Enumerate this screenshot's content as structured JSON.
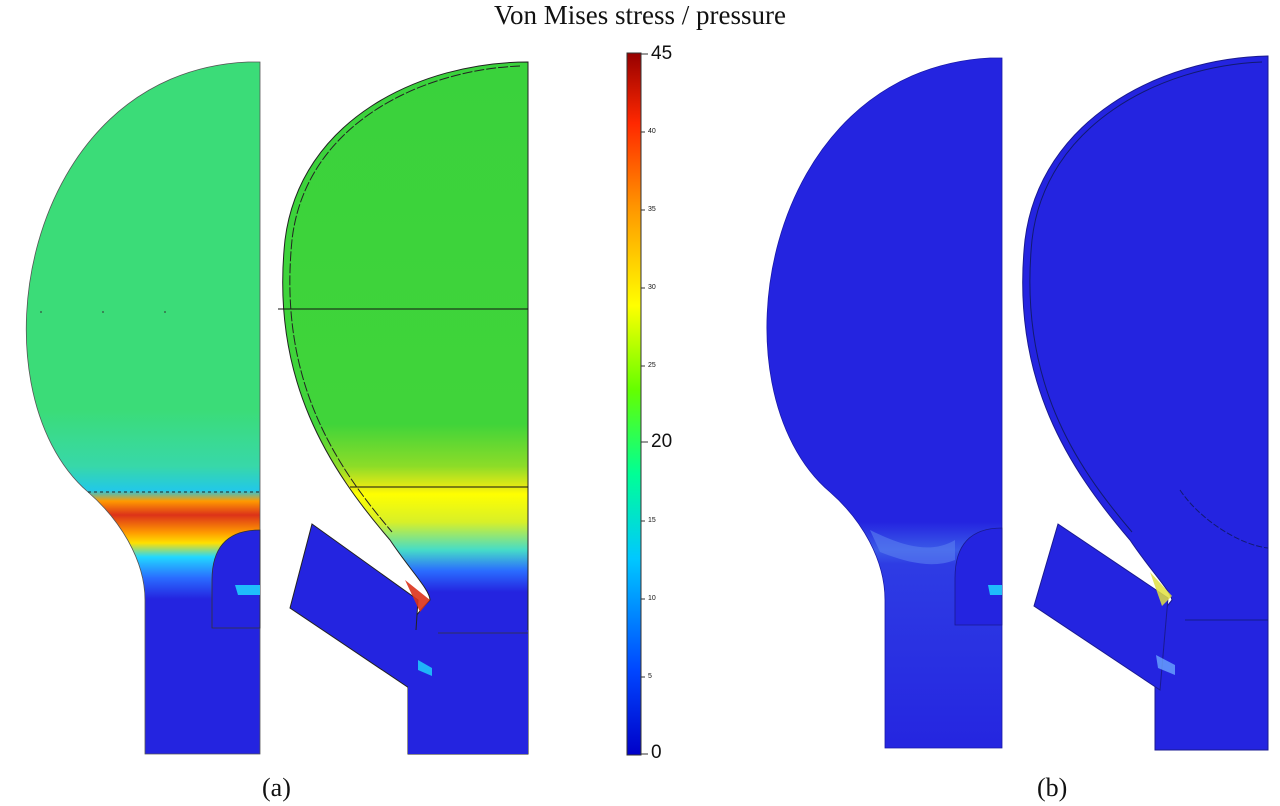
{
  "title": "Von Mises stress / pressure",
  "panel_labels": [
    "(a)",
    "(b)"
  ],
  "colorbar": {
    "min": 0,
    "max": 45,
    "major_ticks": [
      "45",
      "20",
      "0"
    ],
    "minor_ticks": [
      "40",
      "35",
      "30",
      "25",
      "15",
      "10",
      "5"
    ],
    "colors": [
      "#0000c8",
      "#0046ff",
      "#00c8ff",
      "#00ff96",
      "#64ff00",
      "#ffff00",
      "#ff9600",
      "#ff2800",
      "#960000"
    ]
  },
  "colors": {
    "low": "#2424e0",
    "mid": "#3cdc78",
    "green_bright": "#3ad23c",
    "high": "#dc3219"
  }
}
